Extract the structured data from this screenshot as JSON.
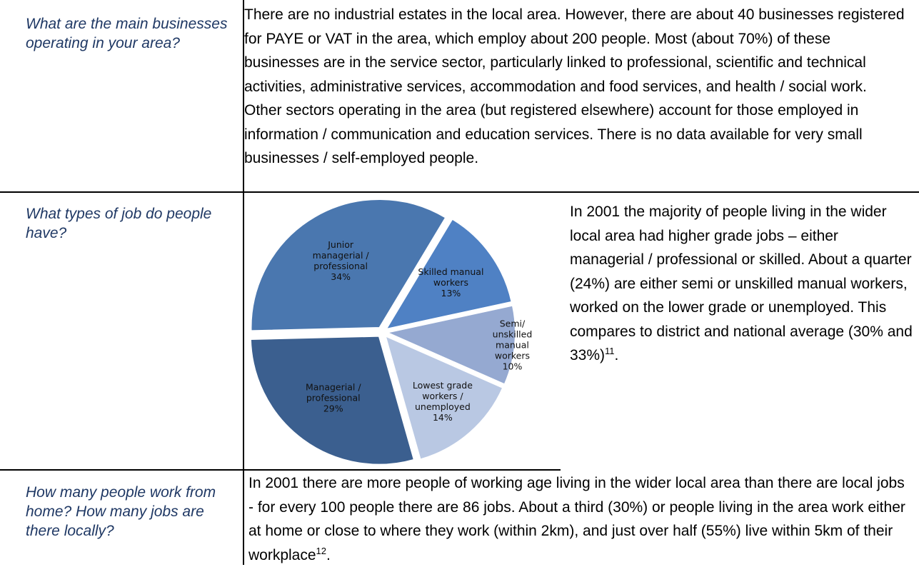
{
  "table": {
    "rows": [
      {
        "question": "What are the main businesses operating in your area?",
        "answer": "There are no industrial estates in the local area.  However, there are about 40 businesses registered for PAYE or VAT in the area, which employ about 200 people.  Most (about 70%) of these businesses are in the service sector, particularly linked to professional, scientific and technical activities, administrative services, accommodation and food services, and health / social work.  Other sectors operating in the area (but registered elsewhere) account for those employed in information / communication and education services.  There is no data available for very small businesses / self-employed people."
      },
      {
        "question": "What types of job do people have?",
        "answer": "In 2001 the majority of people living in the wider local area had higher grade jobs – either managerial / professional or skilled.  About a quarter (24%) are either semi or unskilled manual workers, worked on the lower grade or unemployed.  This compares to district and national average (30% and 33%)",
        "footnote": "11",
        "answer_end": ".",
        "chart_data": {
          "type": "pie",
          "categories": [
            [
              "Skilled manual",
              "workers"
            ],
            [
              "Semi/",
              "unskilled",
              "manual",
              "workers"
            ],
            [
              "Lowest grade",
              "workers /",
              "unemployed"
            ],
            [
              "Managerial /",
              "professional"
            ],
            [
              "Junior",
              "managerial /",
              "professional"
            ]
          ],
          "values": [
            13,
            10,
            14,
            29,
            34
          ],
          "value_labels": [
            "13%",
            "10%",
            "14%",
            "29%",
            "34%"
          ],
          "colors": [
            "#4f81c4",
            "#95a9d1",
            "#b9c8e3",
            "#3b5f8f",
            "#4a77af"
          ]
        }
      },
      {
        "question": "How many people work from home?  How many jobs are there locally?",
        "answer": "In 2001 there are more people of working age living in the wider local area than there are local jobs - for every 100 people there are 86 jobs.  About a third (30%) or people living in the area work either at home or close to where they work (within 2km), and just over half (55%) live within 5km of their workplace",
        "footnote": "12",
        "answer_end": "."
      }
    ]
  }
}
